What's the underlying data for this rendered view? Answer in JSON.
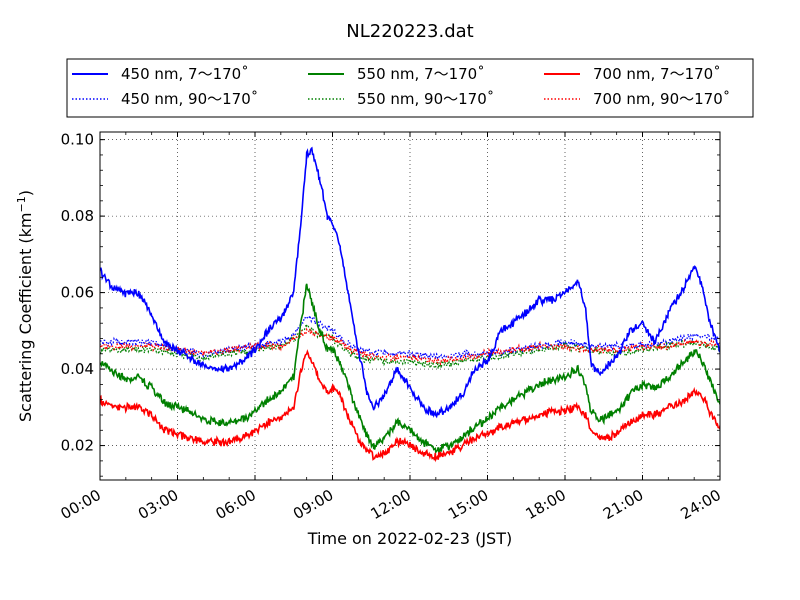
{
  "chart_data": {
    "type": "line",
    "title": "NL220223.dat",
    "xlabel": "Time on 2022-02-23 (JST)",
    "ylabel": "Scattering Coefficient (km",
    "ylabel_sup": "−1",
    "ylabel_close": ")",
    "xlim": [
      0,
      24
    ],
    "ylim": [
      0.011,
      0.102
    ],
    "x_ticks": [
      0,
      3,
      6,
      9,
      12,
      15,
      18,
      21,
      24
    ],
    "x_tick_labels": [
      "00:00",
      "03:00",
      "06:00",
      "09:00",
      "12:00",
      "15:00",
      "18:00",
      "21:00",
      "24:00"
    ],
    "y_ticks": [
      0.02,
      0.04,
      0.06,
      0.08,
      0.1
    ],
    "y_tick_labels": [
      "0.02",
      "0.04",
      "0.06",
      "0.08",
      "0.10"
    ],
    "grid": true,
    "legend_position": "top",
    "series": [
      {
        "name": "450 nm, 7～170˚",
        "color": "#0000ff",
        "style": "solid",
        "x": [
          0,
          0.5,
          1,
          1.5,
          2,
          2.5,
          3,
          3.5,
          4,
          4.5,
          5,
          5.5,
          6,
          6.5,
          7,
          7.5,
          7.8,
          8,
          8.2,
          8.5,
          8.8,
          9,
          9.3,
          9.6,
          10,
          10.3,
          10.6,
          11,
          11.5,
          12,
          12.5,
          13,
          13.5,
          14,
          14.5,
          15,
          15.5,
          16,
          16.5,
          17,
          17.5,
          18,
          18.5,
          18.8,
          19,
          19.3,
          19.5,
          20,
          20.5,
          21,
          21.5,
          22,
          22.5,
          23,
          23.3,
          23.6,
          24
        ],
        "y": [
          0.066,
          0.061,
          0.06,
          0.06,
          0.054,
          0.047,
          0.045,
          0.043,
          0.041,
          0.04,
          0.04,
          0.042,
          0.045,
          0.05,
          0.053,
          0.06,
          0.08,
          0.096,
          0.097,
          0.09,
          0.08,
          0.078,
          0.072,
          0.06,
          0.045,
          0.035,
          0.03,
          0.033,
          0.04,
          0.035,
          0.03,
          0.028,
          0.03,
          0.033,
          0.04,
          0.042,
          0.05,
          0.052,
          0.055,
          0.058,
          0.058,
          0.06,
          0.063,
          0.055,
          0.042,
          0.039,
          0.04,
          0.043,
          0.05,
          0.052,
          0.047,
          0.055,
          0.06,
          0.067,
          0.062,
          0.052,
          0.045
        ]
      },
      {
        "name": "550 nm, 7～170˚",
        "color": "#008000",
        "style": "solid",
        "x": [
          0,
          0.5,
          1,
          1.5,
          2,
          2.5,
          3,
          3.5,
          4,
          4.5,
          5,
          5.5,
          6,
          6.5,
          7,
          7.5,
          7.8,
          8,
          8.2,
          8.5,
          8.8,
          9,
          9.3,
          9.6,
          10,
          10.3,
          10.6,
          11,
          11.5,
          12,
          12.5,
          13,
          13.5,
          14,
          14.5,
          15,
          15.5,
          16,
          16.5,
          17,
          17.5,
          18,
          18.5,
          18.8,
          19,
          19.3,
          19.5,
          20,
          20.5,
          21,
          21.5,
          22,
          22.5,
          23,
          23.3,
          23.6,
          24
        ],
        "y": [
          0.042,
          0.039,
          0.037,
          0.038,
          0.035,
          0.031,
          0.03,
          0.029,
          0.027,
          0.026,
          0.026,
          0.027,
          0.029,
          0.032,
          0.034,
          0.038,
          0.053,
          0.062,
          0.058,
          0.05,
          0.045,
          0.045,
          0.042,
          0.036,
          0.028,
          0.023,
          0.02,
          0.022,
          0.026,
          0.024,
          0.021,
          0.019,
          0.02,
          0.022,
          0.025,
          0.027,
          0.03,
          0.032,
          0.034,
          0.036,
          0.037,
          0.038,
          0.04,
          0.036,
          0.029,
          0.027,
          0.027,
          0.029,
          0.033,
          0.036,
          0.035,
          0.038,
          0.041,
          0.045,
          0.042,
          0.037,
          0.031
        ]
      },
      {
        "name": "700 nm, 7～170˚",
        "color": "#ff0000",
        "style": "solid",
        "x": [
          0,
          0.5,
          1,
          1.5,
          2,
          2.5,
          3,
          3.5,
          4,
          4.5,
          5,
          5.5,
          6,
          6.5,
          7,
          7.5,
          7.8,
          8,
          8.2,
          8.5,
          8.8,
          9,
          9.3,
          9.6,
          10,
          10.3,
          10.6,
          11,
          11.5,
          12,
          12.5,
          13,
          13.5,
          14,
          14.5,
          15,
          15.5,
          16,
          16.5,
          17,
          17.5,
          18,
          18.5,
          18.8,
          19,
          19.3,
          19.5,
          20,
          20.5,
          21,
          21.5,
          22,
          22.5,
          23,
          23.3,
          23.6,
          24
        ],
        "y": [
          0.032,
          0.03,
          0.03,
          0.03,
          0.028,
          0.024,
          0.023,
          0.022,
          0.021,
          0.021,
          0.021,
          0.022,
          0.024,
          0.026,
          0.027,
          0.03,
          0.04,
          0.045,
          0.042,
          0.037,
          0.034,
          0.035,
          0.033,
          0.028,
          0.022,
          0.019,
          0.017,
          0.018,
          0.021,
          0.02,
          0.018,
          0.017,
          0.018,
          0.02,
          0.022,
          0.023,
          0.025,
          0.026,
          0.027,
          0.028,
          0.029,
          0.029,
          0.03,
          0.028,
          0.024,
          0.022,
          0.022,
          0.023,
          0.026,
          0.028,
          0.028,
          0.03,
          0.031,
          0.034,
          0.033,
          0.029,
          0.025
        ]
      },
      {
        "name": "450 nm, 90～170˚",
        "color": "#0000ff",
        "style": "dotted",
        "x": [
          0,
          1,
          2,
          3,
          4,
          5,
          6,
          7,
          7.5,
          8,
          8.5,
          9,
          9.5,
          10,
          11,
          12,
          13,
          14,
          15,
          16,
          17,
          18,
          19,
          20,
          21,
          22,
          23,
          24
        ],
        "y": [
          0.047,
          0.047,
          0.047,
          0.045,
          0.044,
          0.045,
          0.046,
          0.047,
          0.049,
          0.054,
          0.052,
          0.05,
          0.047,
          0.045,
          0.044,
          0.044,
          0.043,
          0.044,
          0.044,
          0.045,
          0.046,
          0.047,
          0.046,
          0.046,
          0.046,
          0.047,
          0.049,
          0.048
        ]
      },
      {
        "name": "550 nm, 90～170˚",
        "color": "#008000",
        "style": "dotted",
        "x": [
          0,
          1,
          2,
          3,
          4,
          5,
          6,
          7,
          7.5,
          8,
          8.5,
          9,
          9.5,
          10,
          11,
          12,
          13,
          14,
          15,
          16,
          17,
          18,
          19,
          20,
          21,
          22,
          23,
          24
        ],
        "y": [
          0.045,
          0.045,
          0.045,
          0.044,
          0.043,
          0.044,
          0.045,
          0.046,
          0.048,
          0.051,
          0.049,
          0.048,
          0.045,
          0.043,
          0.042,
          0.042,
          0.041,
          0.042,
          0.043,
          0.044,
          0.045,
          0.046,
          0.045,
          0.044,
          0.045,
          0.046,
          0.047,
          0.045
        ]
      },
      {
        "name": "700 nm, 90～170˚",
        "color": "#ff0000",
        "style": "dotted",
        "x": [
          0,
          1,
          2,
          3,
          4,
          5,
          6,
          7,
          7.5,
          8,
          8.5,
          9,
          9.5,
          10,
          11,
          12,
          13,
          14,
          15,
          16,
          17,
          18,
          19,
          20,
          21,
          22,
          23,
          24
        ],
        "y": [
          0.046,
          0.046,
          0.046,
          0.045,
          0.044,
          0.045,
          0.046,
          0.046,
          0.048,
          0.05,
          0.049,
          0.048,
          0.046,
          0.044,
          0.043,
          0.043,
          0.042,
          0.043,
          0.044,
          0.045,
          0.046,
          0.046,
          0.045,
          0.045,
          0.046,
          0.046,
          0.047,
          0.046
        ]
      }
    ]
  }
}
